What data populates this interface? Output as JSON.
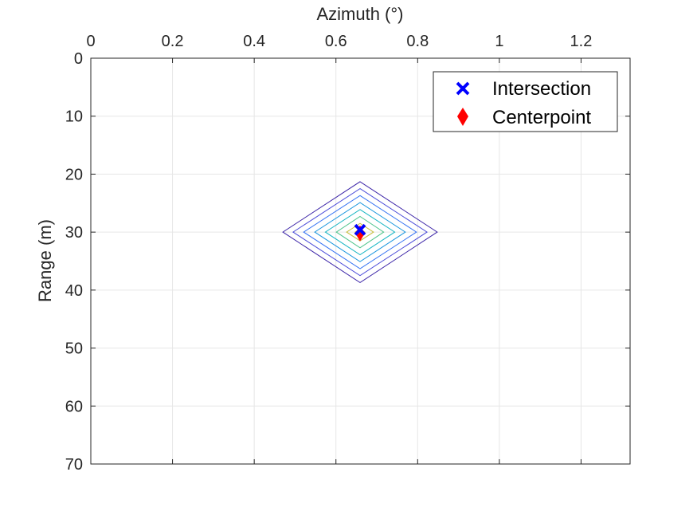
{
  "chart_data": {
    "type": "contour",
    "xlabel": "Azimuth (°)",
    "ylabel": "Range (m)",
    "xlim": [
      0,
      1.32
    ],
    "ylim": [
      0,
      70
    ],
    "x_axis_position": "top",
    "y_axis_reversed": true,
    "grid": true,
    "x_ticks": [
      "0",
      "0.2",
      "0.4",
      "0.6",
      "0.8",
      "1",
      "1.2"
    ],
    "x_tick_values": [
      0,
      0.2,
      0.4,
      0.6,
      0.8,
      1.0,
      1.2
    ],
    "y_ticks": [
      "0",
      "10",
      "20",
      "30",
      "40",
      "50",
      "60",
      "70"
    ],
    "y_tick_values": [
      0,
      10,
      20,
      30,
      40,
      50,
      60,
      70
    ],
    "contours": {
      "center": [
        0.659,
        30
      ],
      "levels": [
        {
          "half_width_azimuth": 0.189,
          "half_height_range": 8.7,
          "color": "#3d26a8"
        },
        {
          "half_width_azimuth": 0.164,
          "half_height_range": 7.5,
          "color": "#4c4dd9"
        },
        {
          "half_width_azimuth": 0.138,
          "half_height_range": 6.3,
          "color": "#3573f3"
        },
        {
          "half_width_azimuth": 0.111,
          "half_height_range": 5.1,
          "color": "#1996de"
        },
        {
          "half_width_azimuth": 0.085,
          "half_height_range": 3.9,
          "color": "#16b5c3"
        },
        {
          "half_width_azimuth": 0.058,
          "half_height_range": 2.7,
          "color": "#4cc38a"
        },
        {
          "half_width_azimuth": 0.033,
          "half_height_range": 1.5,
          "color": "#c7be3b"
        },
        {
          "half_width_azimuth": 0.012,
          "half_height_range": 0.6,
          "color": "#f3b630"
        }
      ]
    },
    "series": [
      {
        "name": "Intersection",
        "marker": "x",
        "color": "#0000ff",
        "x": 0.659,
        "y": 29.6
      },
      {
        "name": "Centerpoint",
        "marker": "diamond",
        "color": "#ff0000",
        "x": 0.659,
        "y": 30.2
      }
    ],
    "legend_position": "top-right"
  }
}
